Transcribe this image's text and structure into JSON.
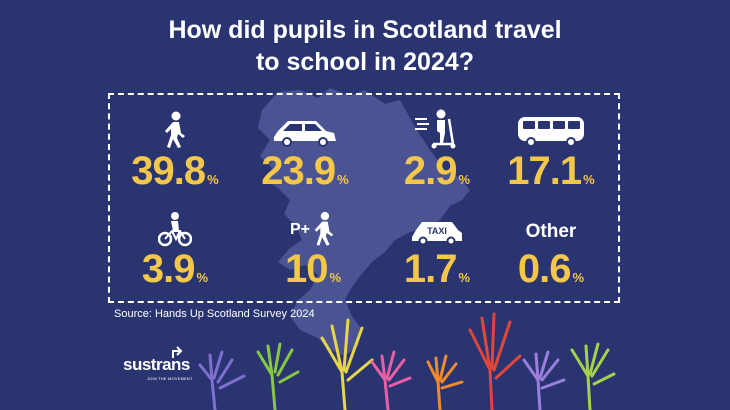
{
  "title": {
    "line1": "How did pupils in Scotland travel",
    "line2": "to school in 2024?"
  },
  "colors": {
    "background": "#2a3470",
    "value": "#f3c84a",
    "text": "#ffffff"
  },
  "modes": [
    {
      "icon": "walking-person-icon",
      "value": "39.8",
      "unit": "%"
    },
    {
      "icon": "car-icon",
      "value": "23.9",
      "unit": "%"
    },
    {
      "icon": "scooter-icon",
      "value": "2.9",
      "unit": "%"
    },
    {
      "icon": "bus-icon",
      "value": "17.1",
      "unit": "%"
    },
    {
      "icon": "bicycle-icon",
      "value": "3.9",
      "unit": "%"
    },
    {
      "icon": "park-and-stride-icon",
      "icon_text": "P+",
      "value": "10",
      "unit": "%"
    },
    {
      "icon": "taxi-icon",
      "icon_text": "TAXI",
      "value": "1.7",
      "unit": "%"
    },
    {
      "label": "Other",
      "value": "0.6",
      "unit": "%"
    }
  ],
  "source": "Source: Hands Up Scotland Survey 2024",
  "logo": {
    "name": "sustrans",
    "tagline": "JOIN THE MOVEMENT"
  }
}
